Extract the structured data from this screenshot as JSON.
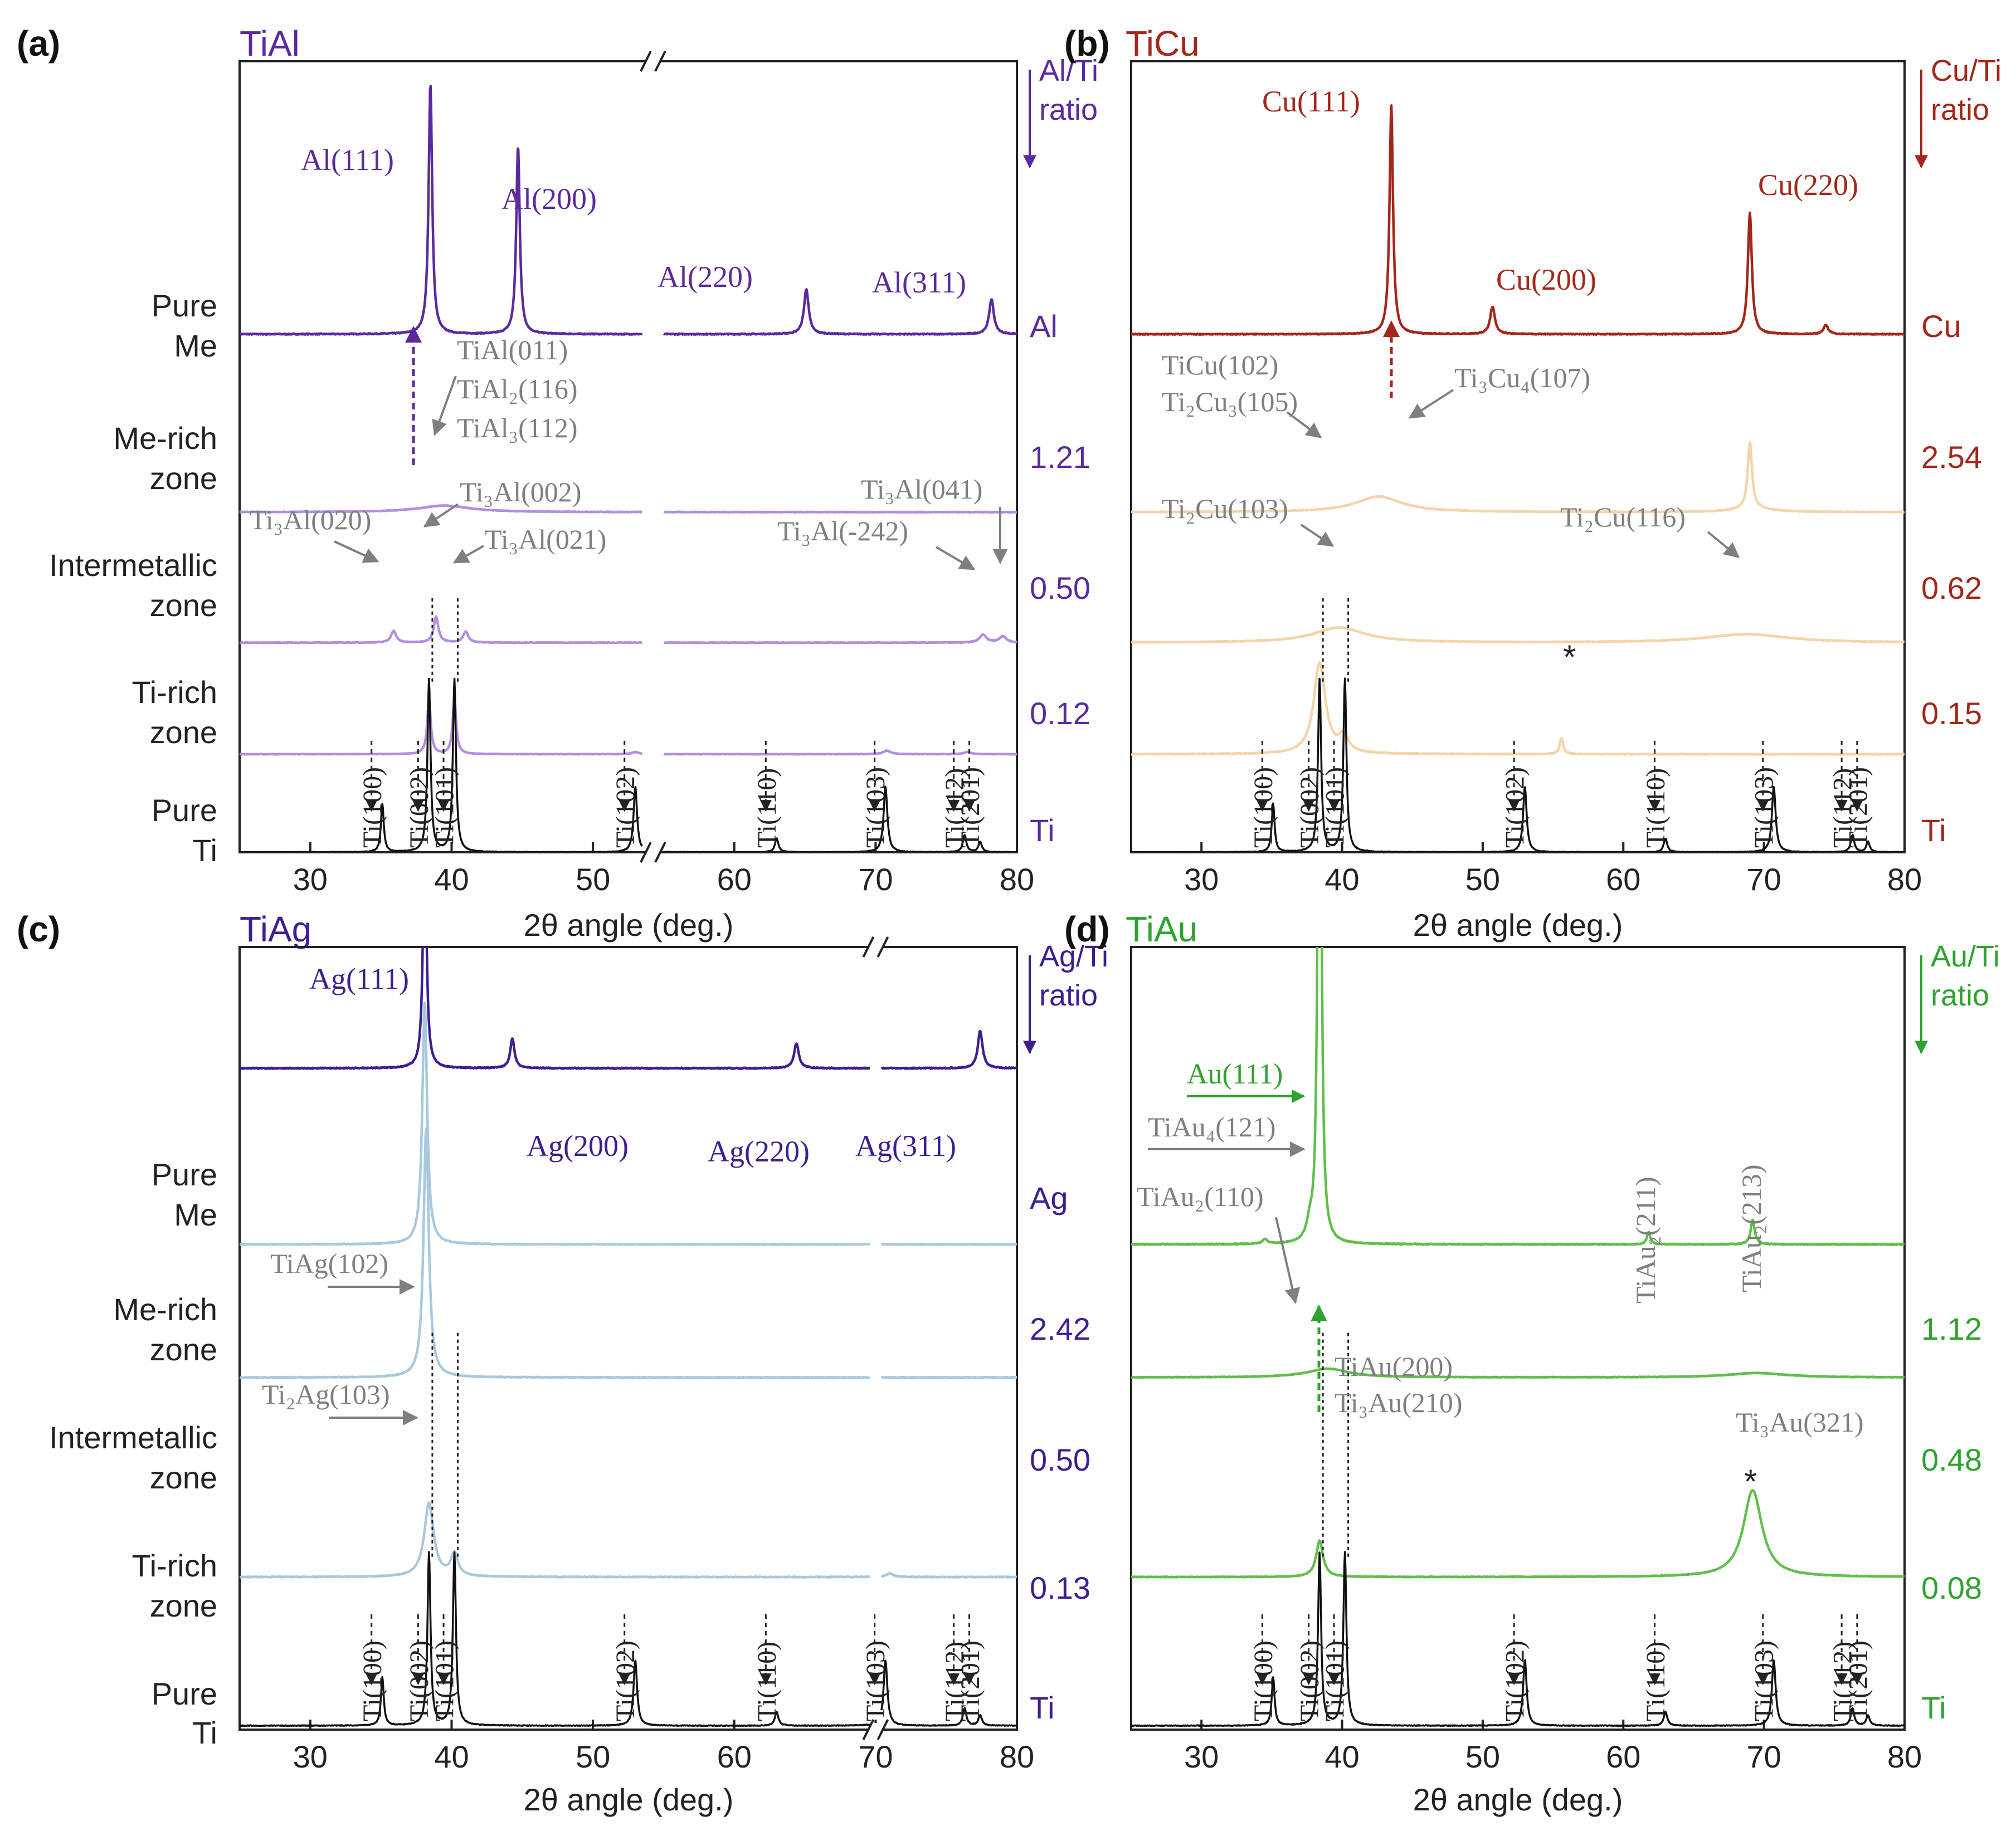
{
  "figure": {
    "x_axis_label": "2θ angle (deg.)",
    "row_labels": [
      [
        "Pure",
        "Me"
      ],
      [
        "Me-rich",
        "zone"
      ],
      [
        "Intermetallic",
        "zone"
      ],
      [
        "Ti-rich",
        "zone"
      ],
      [
        "Pure",
        "Ti"
      ]
    ],
    "ti_peaks": [
      "Ti(100)",
      "Ti(002)",
      "Ti(101)",
      "Ti(102)",
      "Ti(110)",
      "Ti(103)",
      "Ti(112)",
      "Ti(201)"
    ],
    "ti_peak_positions": [
      35.1,
      38.4,
      40.2,
      53.0,
      63.0,
      70.7,
      76.3,
      77.4
    ],
    "ticks": [
      30,
      40,
      50,
      60,
      70,
      80
    ],
    "colors": {
      "ti": "#111111",
      "gray_annotation": "#7f7f7f",
      "axis": "#222222"
    }
  },
  "chart_data": [
    {
      "type": "line",
      "panel": "(a)",
      "title": "TiAl",
      "color": "#5b2a9e",
      "ratio_label": [
        "Al/Ti",
        "ratio"
      ],
      "xlabel": "2θ angle (deg.)",
      "xlim": [
        25,
        80
      ],
      "axis_break": [
        53.5,
        55.0
      ],
      "series": [
        {
          "name": "Pure Me",
          "value_label": "Al",
          "color": "#5b2a9e",
          "noise": 0.002,
          "peaks": [
            [
              38.5,
              1.0,
              0.15
            ],
            [
              44.7,
              0.75,
              0.15
            ],
            [
              65.1,
              0.18,
              0.2
            ],
            [
              78.2,
              0.14,
              0.2
            ]
          ]
        },
        {
          "name": "Me-rich zone",
          "value_label": "1.21",
          "color": "#b38ee0",
          "noise": 0.004,
          "peaks": [
            [
              39.5,
              0.09,
              2.2
            ]
          ]
        },
        {
          "name": "Intermetallic zone",
          "value_label": "0.50",
          "color": "#b38ee0",
          "noise": 0.004,
          "peaks": [
            [
              35.9,
              0.15,
              0.22
            ],
            [
              38.9,
              0.33,
              0.2
            ],
            [
              41.0,
              0.14,
              0.22
            ],
            [
              77.6,
              0.1,
              0.3
            ],
            [
              79.0,
              0.08,
              0.3
            ]
          ]
        },
        {
          "name": "Ti-rich zone",
          "value_label": "0.12",
          "color": "#b38ee0",
          "noise": 0.003,
          "peaks": [
            [
              38.4,
              0.75,
              0.15
            ],
            [
              40.2,
              0.75,
              0.15
            ],
            [
              53.0,
              0.03,
              0.3
            ],
            [
              70.8,
              0.05,
              0.3
            ],
            [
              76.5,
              0.03,
              0.3
            ]
          ]
        },
        {
          "name": "Pure Ti",
          "value_label": "Ti",
          "color": "#111111",
          "noise": 0.002,
          "peaks": [
            [
              35.1,
              0.28,
              0.12
            ],
            [
              38.4,
              1.0,
              0.13
            ],
            [
              40.2,
              1.0,
              0.13
            ],
            [
              53.0,
              0.38,
              0.15
            ],
            [
              63.0,
              0.08,
              0.15
            ],
            [
              70.7,
              0.38,
              0.16
            ],
            [
              76.3,
              0.1,
              0.15
            ],
            [
              77.4,
              0.06,
              0.15
            ]
          ]
        }
      ],
      "annotations": {
        "me_peaks": [
          "Al(111)",
          "Al(200)",
          "Al(220)",
          "Al(311)"
        ],
        "merich": [
          "TiAl(011)",
          "TiAl₂(116)",
          "TiAl₃(112)"
        ],
        "intermetallic": [
          "Ti₃Al(020)",
          "Ti₃Al(002)",
          "Ti₃Al(021)",
          "Ti₃Al(-242)",
          "Ti₃Al(041)"
        ]
      }
    },
    {
      "type": "line",
      "panel": "(b)",
      "title": "TiCu",
      "color": "#a3271a",
      "ratio_label": [
        "Cu/Ti",
        "ratio"
      ],
      "xlabel": "2θ angle (deg.)",
      "xlim": [
        25,
        80
      ],
      "series": [
        {
          "name": "Pure Me",
          "value_label": "Cu",
          "color": "#a3271a",
          "noise": 0.002,
          "peaks": [
            [
              43.5,
              1.0,
              0.15
            ],
            [
              50.7,
              0.12,
              0.2
            ],
            [
              69.0,
              0.53,
              0.17
            ],
            [
              74.4,
              0.04,
              0.2
            ]
          ]
        },
        {
          "name": "Me-rich zone",
          "value_label": "2.54",
          "color": "#f4d4a8",
          "noise": 0.004,
          "peaks": [
            [
              42.6,
              0.2,
              2.0
            ],
            [
              69.0,
              0.85,
              0.18
            ],
            [
              69.2,
              0.05,
              1.5
            ]
          ]
        },
        {
          "name": "Intermetallic zone",
          "value_label": "0.62",
          "color": "#f4d4a8",
          "noise": 0.004,
          "peaks": [
            [
              39.8,
              0.18,
              2.2
            ],
            [
              68.8,
              0.1,
              3.5
            ]
          ]
        },
        {
          "name": "Ti-rich zone",
          "value_label": "0.15",
          "color": "#f4d4a8",
          "noise": 0.003,
          "peaks": [
            [
              38.4,
              0.68,
              0.5
            ],
            [
              40.1,
              0.12,
              0.4
            ],
            [
              55.6,
              0.12,
              0.15
            ]
          ]
        },
        {
          "name": "Pure Ti",
          "value_label": "Ti",
          "color": "#111111",
          "noise": 0.002,
          "peaks": [
            [
              35.1,
              0.28,
              0.12
            ],
            [
              38.4,
              1.0,
              0.13
            ],
            [
              40.2,
              1.0,
              0.13
            ],
            [
              53.0,
              0.38,
              0.15
            ],
            [
              63.0,
              0.08,
              0.15
            ],
            [
              70.7,
              0.38,
              0.16
            ],
            [
              76.3,
              0.1,
              0.15
            ],
            [
              77.4,
              0.06,
              0.15
            ]
          ]
        }
      ],
      "annotations": {
        "me_peaks": [
          "Cu(111)",
          "Cu(200)",
          "Cu(220)"
        ],
        "merich": [
          "TiCu(102)",
          "Ti₂Cu₃(105)",
          "Ti₃Cu₄(107)"
        ],
        "intermetallic": [
          "Ti₂Cu(103)",
          "Ti₂Cu(116)"
        ],
        "star": "*"
      }
    },
    {
      "type": "line",
      "panel": "(c)",
      "title": "TiAg",
      "color": "#3d1f8f",
      "ratio_label": [
        "Ag/Ti",
        "ratio"
      ],
      "xlabel": "2θ angle (deg.)",
      "xlim": [
        25,
        80
      ],
      "axis_break": [
        69.6,
        70.4
      ],
      "series": [
        {
          "name": "Pure Me",
          "value_label": "Ag",
          "color": "#3d1f8f",
          "noise": 0.002,
          "peaks": [
            [
              38.1,
              1.0,
              0.14
            ],
            [
              44.3,
              0.12,
              0.18
            ],
            [
              64.4,
              0.1,
              0.2
            ],
            [
              77.4,
              0.15,
              0.2
            ]
          ]
        },
        {
          "name": "Me-rich zone",
          "value_label": "2.42",
          "color": "#a7c8e0",
          "noise": 0.0015,
          "peaks": [
            [
              38.1,
              0.95,
              0.2
            ]
          ]
        },
        {
          "name": "Intermetallic zone",
          "value_label": "0.50",
          "color": "#a7c8e0",
          "noise": 0.0015,
          "peaks": [
            [
              38.2,
              0.95,
              0.22
            ]
          ]
        },
        {
          "name": "Ti-rich zone",
          "value_label": "0.13",
          "color": "#a7c8e0",
          "noise": 0.002,
          "peaks": [
            [
              38.4,
              0.4,
              0.4
            ],
            [
              40.2,
              0.12,
              0.3
            ],
            [
              71.0,
              0.02,
              0.3
            ]
          ]
        },
        {
          "name": "Pure Ti",
          "value_label": "Ti",
          "color": "#111111",
          "noise": 0.002,
          "peaks": [
            [
              35.1,
              0.28,
              0.12
            ],
            [
              38.4,
              1.0,
              0.13
            ],
            [
              40.2,
              1.0,
              0.13
            ],
            [
              53.0,
              0.38,
              0.15
            ],
            [
              63.0,
              0.08,
              0.15
            ],
            [
              70.7,
              0.38,
              0.16
            ],
            [
              76.3,
              0.1,
              0.15
            ],
            [
              77.4,
              0.06,
              0.15
            ]
          ]
        }
      ],
      "annotations": {
        "me_peaks": [
          "Ag(111)",
          "Ag(200)",
          "Ag(220)",
          "Ag(311)"
        ],
        "merich": [
          "TiAg(102)"
        ],
        "intermetallic": [
          "Ti₂Ag(103)"
        ]
      }
    },
    {
      "type": "line",
      "panel": "(d)",
      "title": "TiAu",
      "color": "#2ea32e",
      "ratio_label": [
        "Au/Ti",
        "ratio"
      ],
      "xlabel": "2θ angle (deg.)",
      "xlim": [
        25,
        80
      ],
      "series": [
        {
          "name": "Me-rich zone",
          "value_label": "1.12",
          "color": "#5fbf4a",
          "noise": 0.002,
          "peaks": [
            [
              38.4,
              3.5,
              0.12
            ],
            [
              37.7,
              0.06,
              0.25
            ],
            [
              34.5,
              0.02,
              0.2
            ],
            [
              61.8,
              0.05,
              0.15
            ],
            [
              69.2,
              0.1,
              0.17
            ]
          ]
        },
        {
          "name": "Intermetallic zone",
          "value_label": "0.48",
          "color": "#5fbf4a",
          "noise": 0.004,
          "peaks": [
            [
              39.0,
              0.12,
              1.8
            ],
            [
              69.5,
              0.06,
              2.5
            ]
          ]
        },
        {
          "name": "Ti-rich zone",
          "value_label": "0.08",
          "color": "#5fbf4a",
          "noise": 0.002,
          "peaks": [
            [
              38.4,
              0.25,
              0.3
            ],
            [
              69.2,
              0.6,
              0.8
            ]
          ]
        },
        {
          "name": "Pure Ti",
          "value_label": "Ti",
          "color": "#111111",
          "noise": 0.002,
          "peaks": [
            [
              35.1,
              0.28,
              0.12
            ],
            [
              38.4,
              1.0,
              0.13
            ],
            [
              40.2,
              1.0,
              0.13
            ],
            [
              53.0,
              0.38,
              0.15
            ],
            [
              63.0,
              0.08,
              0.15
            ],
            [
              70.7,
              0.38,
              0.16
            ],
            [
              76.3,
              0.1,
              0.15
            ],
            [
              77.4,
              0.06,
              0.15
            ]
          ]
        }
      ],
      "annotations": {
        "merich": [
          "Au(111)",
          "TiAu₄(121)",
          "TiAu₂(110)",
          "TiAu₂(211)",
          "TiAu₂(213)"
        ],
        "intermetallic": [
          "TiAu(200)",
          "Ti₃Au(210)",
          "Ti₃Au(321)"
        ],
        "star": "*"
      }
    }
  ]
}
